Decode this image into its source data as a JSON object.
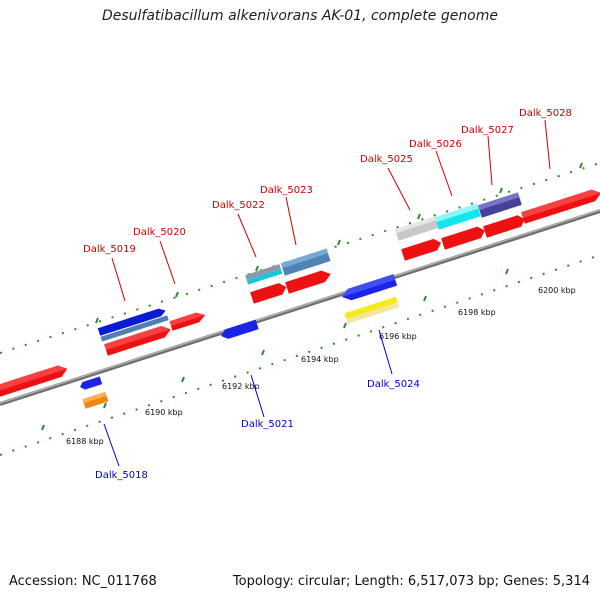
{
  "title": "Desulfatibacillum alkenivorans AK-01, complete genome",
  "footer": {
    "accession": "Accession: NC_011768",
    "summary": "Topology: circular; Length: 6,517,073 bp; Genes: 5,314"
  },
  "colors": {
    "backbone": "#8a8a8a",
    "tick": "#2e8b2e",
    "label_top": "#cc0000",
    "label_bottom": "#0000cc"
  },
  "scale_labels": [
    "6188 kbp",
    "6190 kbp",
    "6192 kbp",
    "6194 kbp",
    "6196 kbp",
    "6198 kbp",
    "6200 kbp"
  ],
  "gene_labels_top": [
    "Dalk_5019",
    "Dalk_5020",
    "Dalk_5022",
    "Dalk_5023",
    "Dalk_5025",
    "Dalk_5026",
    "Dalk_5027",
    "Dalk_5028"
  ],
  "gene_labels_bottom": [
    "Dalk_5018",
    "Dalk_5021",
    "Dalk_5024"
  ]
}
